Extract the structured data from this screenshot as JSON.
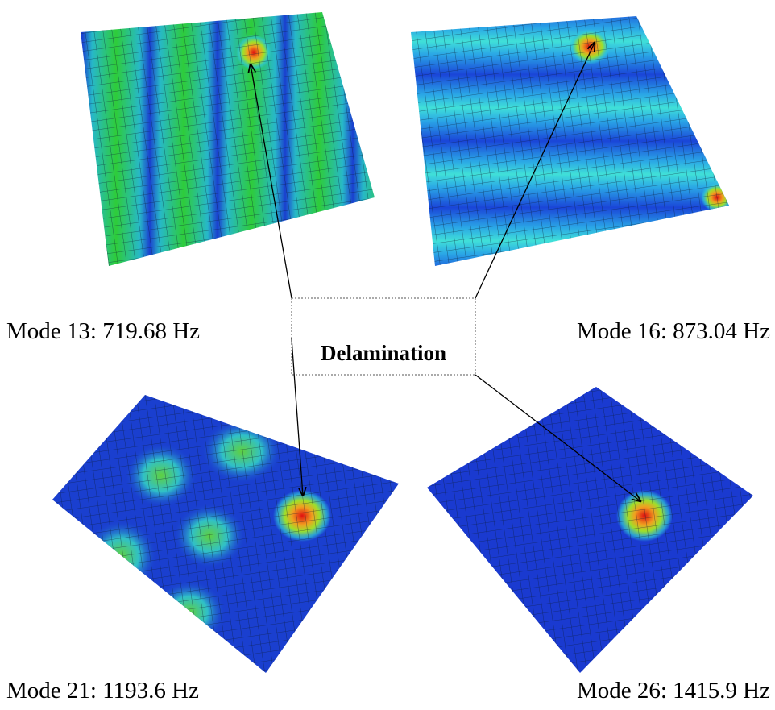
{
  "panels": [
    {
      "label": "Mode 13: 719.68 Hz"
    },
    {
      "label": "Mode 16: 873.04 Hz"
    },
    {
      "label": "Mode 21: 1193.6 Hz"
    },
    {
      "label": "Mode 26: 1415.9 Hz"
    }
  ],
  "callout": {
    "label": "Delamination"
  }
}
